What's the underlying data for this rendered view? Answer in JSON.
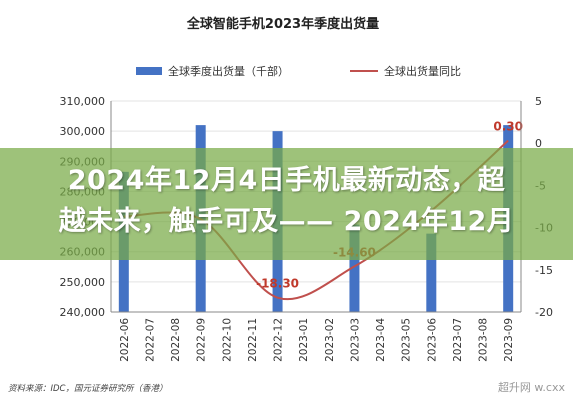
{
  "chart_data": {
    "type": "bar",
    "title": "全球智能手机2023年季度出货量",
    "categories": [
      "2022-06",
      "2022-07",
      "2022-08",
      "2022-09",
      "2022-10",
      "2022-11",
      "2022-12",
      "2023-01",
      "2023-02",
      "2023-03",
      "2023-04",
      "2023-05",
      "2023-06",
      "2023-07",
      "2023-08",
      "2023-09"
    ],
    "series": [
      {
        "name": "全球季度出货量（千部）",
        "type": "bar",
        "axis": "left",
        "color": "#4472c4",
        "values": [
          286500,
          null,
          null,
          302000,
          null,
          null,
          300000,
          null,
          null,
          269000,
          null,
          null,
          266000,
          null,
          null,
          302000
        ]
      },
      {
        "name": "全球出货量同比",
        "type": "line",
        "axis": "right",
        "color": "#c0504d",
        "values": [
          -8.7,
          null,
          null,
          -9.0,
          null,
          null,
          -18.3,
          null,
          null,
          -14.6,
          null,
          null,
          -8.0,
          null,
          null,
          0.3
        ],
        "labels": [
          "",
          "",
          "",
          "",
          "",
          "",
          "-18.30",
          "",
          "",
          "-14.60",
          "",
          "",
          "",
          "",
          "",
          "0.30"
        ]
      }
    ],
    "ylim": [
      240000,
      310000
    ],
    "yticks": [
      "240,000",
      "250,000",
      "260,000",
      "270,000",
      "280,000",
      "290,000",
      "300,000",
      "310,000"
    ],
    "y2lim": [
      -20,
      5
    ],
    "y2ticks": [
      "-20",
      "-15",
      "-10",
      "-5",
      "0",
      "5"
    ],
    "legend_position": "top"
  },
  "overlay": {
    "line1": "2024年12月4日手机最新动态，超",
    "line2": "越未来，触手可及—— 2024年12月"
  },
  "source": "资料来源：IDC，国元证券研究所（香港）",
  "watermark": "超升网  w.cxx",
  "colors": {
    "bar": "#4472c4",
    "line": "#c0504d",
    "overlay": "#78aa46"
  }
}
